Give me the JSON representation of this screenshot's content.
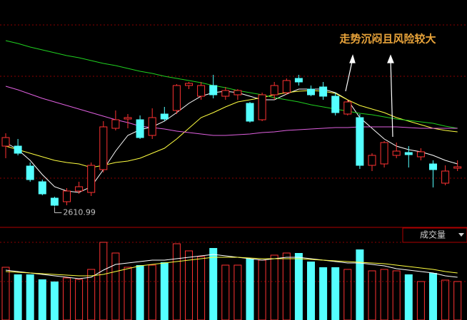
{
  "chart_data": {
    "type": "candlestick",
    "annotation": "走势沉闷且风险较大",
    "ylim": [
      2550,
      3150
    ],
    "up_color": "#ff3232",
    "down_color": "#54ffff",
    "open": [
      2780,
      2780,
      2724,
      2680,
      2634,
      2624,
      2654,
      2650,
      2714,
      2830,
      2856,
      2854,
      2810,
      2870,
      2880,
      2950,
      2920,
      2950,
      2920,
      2924,
      2900,
      2854,
      2924,
      2930,
      2970,
      2940,
      2946,
      2920,
      2870,
      2860,
      2726,
      2730,
      2754,
      2762,
      2750,
      2730,
      2676,
      2718
    ],
    "high": [
      2816,
      2800,
      2734,
      2686,
      2638,
      2662,
      2680,
      2734,
      2850,
      2880,
      2870,
      2866,
      2886,
      2890,
      2954,
      2960,
      2960,
      2980,
      2946,
      2940,
      2904,
      2930,
      2960,
      2970,
      2980,
      2950,
      2960,
      2930,
      2910,
      2870,
      2760,
      2794,
      2790,
      2780,
      2774,
      2740,
      2726,
      2740
    ],
    "low": [
      2746,
      2754,
      2680,
      2642,
      2610.99,
      2614,
      2646,
      2640,
      2706,
      2824,
      2830,
      2800,
      2800,
      2850,
      2870,
      2940,
      2910,
      2914,
      2910,
      2910,
      2846,
      2850,
      2910,
      2924,
      2950,
      2920,
      2910,
      2866,
      2866,
      2716,
      2710,
      2720,
      2746,
      2720,
      2740,
      2664,
      2670,
      2710
    ],
    "close": [
      2804,
      2760,
      2686,
      2646,
      2614,
      2654,
      2666,
      2726,
      2834,
      2854,
      2860,
      2804,
      2860,
      2856,
      2950,
      2956,
      2950,
      2924,
      2936,
      2936,
      2850,
      2924,
      2950,
      2964,
      2960,
      2924,
      2920,
      2874,
      2904,
      2726,
      2754,
      2790,
      2766,
      2756,
      2764,
      2714,
      2710,
      2722
    ],
    "lines": [
      {
        "color": "#ffffff",
        "values": [
          2790,
          2770,
          2740,
          2700,
          2666,
          2654,
          2650,
          2666,
          2714,
          2766,
          2810,
          2826,
          2834,
          2850,
          2874,
          2900,
          2920,
          2930,
          2934,
          2930,
          2920,
          2910,
          2910,
          2926,
          2940,
          2940,
          2940,
          2930,
          2910,
          2860,
          2830,
          2800,
          2780,
          2770,
          2764,
          2754,
          2740,
          2730
        ]
      },
      {
        "color": "#ffff40",
        "values": [
          2780,
          2770,
          2760,
          2750,
          2740,
          2734,
          2730,
          2720,
          2726,
          2734,
          2738,
          2746,
          2760,
          2774,
          2800,
          2830,
          2860,
          2874,
          2890,
          2904,
          2910,
          2916,
          2924,
          2930,
          2934,
          2936,
          2934,
          2928,
          2910,
          2894,
          2884,
          2874,
          2860,
          2850,
          2840,
          2830,
          2824,
          2820
        ]
      },
      {
        "color": "#20d020",
        "values": [
          3076,
          3068,
          3058,
          3050,
          3042,
          3034,
          3028,
          3020,
          3012,
          3006,
          2998,
          2990,
          2984,
          2976,
          2970,
          2964,
          2958,
          2950,
          2944,
          2936,
          2930,
          2924,
          2916,
          2910,
          2904,
          2896,
          2890,
          2884,
          2878,
          2872,
          2868,
          2862,
          2856,
          2852,
          2848,
          2844,
          2836,
          2830
        ]
      },
      {
        "color": "#e060e0",
        "values": [
          2948,
          2938,
          2926,
          2914,
          2904,
          2894,
          2884,
          2874,
          2864,
          2854,
          2846,
          2836,
          2832,
          2828,
          2822,
          2818,
          2814,
          2810,
          2810,
          2812,
          2814,
          2818,
          2820,
          2824,
          2826,
          2828,
          2830,
          2832,
          2832,
          2834,
          2834,
          2834,
          2834,
          2832,
          2830,
          2830,
          2830,
          2830
        ]
      }
    ],
    "volume": {
      "label": "成交量",
      "ylim": [
        0,
        129
      ],
      "values": [
        74,
        64,
        64,
        57,
        54,
        59,
        57,
        71,
        109,
        94,
        74,
        77,
        77,
        81,
        107,
        97,
        89,
        101,
        77,
        77,
        86,
        84,
        91,
        94,
        94,
        82,
        74,
        74,
        71,
        99,
        69,
        71,
        69,
        64,
        54,
        66,
        56,
        54
      ],
      "lines": [
        {
          "color": "#ffffff",
          "values": [
            70,
            68,
            66,
            64,
            62,
            60,
            58,
            60,
            70,
            78,
            80,
            82,
            84,
            84,
            86,
            88,
            90,
            92,
            90,
            88,
            86,
            84,
            86,
            88,
            88,
            86,
            84,
            82,
            80,
            80,
            78,
            76,
            72,
            70,
            68,
            66,
            62,
            60
          ]
        },
        {
          "color": "#ffff40",
          "values": [
            68,
            67,
            66,
            65,
            64,
            63,
            62,
            62,
            64,
            68,
            72,
            76,
            78,
            80,
            82,
            84,
            86,
            88,
            88,
            88,
            87,
            86,
            86,
            86,
            86,
            85,
            84,
            83,
            82,
            81,
            80,
            79,
            77,
            75,
            73,
            71,
            68,
            66
          ]
        }
      ]
    }
  }
}
